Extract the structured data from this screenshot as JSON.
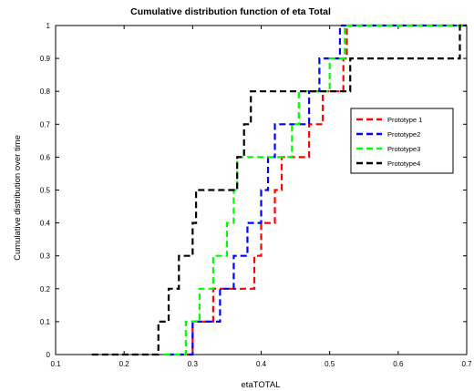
{
  "chart_data": {
    "type": "line",
    "step": true,
    "title": "Cumulative distribution function of eta Total",
    "xlabel": "etaTOTAL",
    "ylabel": "Cumulative distribution over time",
    "xlim": [
      0.1,
      0.7
    ],
    "ylim": [
      0,
      1
    ],
    "xticks": [
      "0.1",
      "0.2",
      "0.3",
      "0.4",
      "0.5",
      "0.6",
      "0.7"
    ],
    "yticks": [
      "0",
      "0.1",
      "0.2",
      "0.3",
      "0.4",
      "0.5",
      "0.6",
      "0.7",
      "0.8",
      "0.9",
      "1"
    ],
    "grid": false,
    "legend_position": "right",
    "series": [
      {
        "name": "Prototype 1",
        "color": "#ff0000",
        "x": [
          0.26,
          0.3,
          0.33,
          0.39,
          0.4,
          0.42,
          0.43,
          0.47,
          0.49,
          0.52,
          0.525
        ],
        "y": [
          0,
          0.1,
          0.2,
          0.3,
          0.4,
          0.5,
          0.6,
          0.7,
          0.8,
          0.9,
          1
        ]
      },
      {
        "name": "Prototype2",
        "color": "#0000ff",
        "x": [
          0.265,
          0.3,
          0.34,
          0.36,
          0.38,
          0.4,
          0.41,
          0.42,
          0.47,
          0.485,
          0.515
        ],
        "y": [
          0,
          0.1,
          0.2,
          0.3,
          0.4,
          0.5,
          0.6,
          0.7,
          0.8,
          0.9,
          1
        ]
      },
      {
        "name": "Prototype3",
        "color": "#00ff00",
        "x": [
          0.258,
          0.29,
          0.31,
          0.33,
          0.35,
          0.36,
          0.365,
          0.445,
          0.455,
          0.5,
          0.522
        ],
        "y": [
          0,
          0.1,
          0.2,
          0.3,
          0.4,
          0.5,
          0.6,
          0.7,
          0.8,
          0.9,
          1
        ]
      },
      {
        "name": "Prototype4",
        "color": "#000000",
        "x": [
          0.153,
          0.25,
          0.265,
          0.28,
          0.3,
          0.305,
          0.365,
          0.375,
          0.385,
          0.53,
          0.69
        ],
        "y": [
          0,
          0.1,
          0.2,
          0.3,
          0.4,
          0.5,
          0.6,
          0.7,
          0.8,
          0.9,
          1
        ]
      }
    ]
  }
}
